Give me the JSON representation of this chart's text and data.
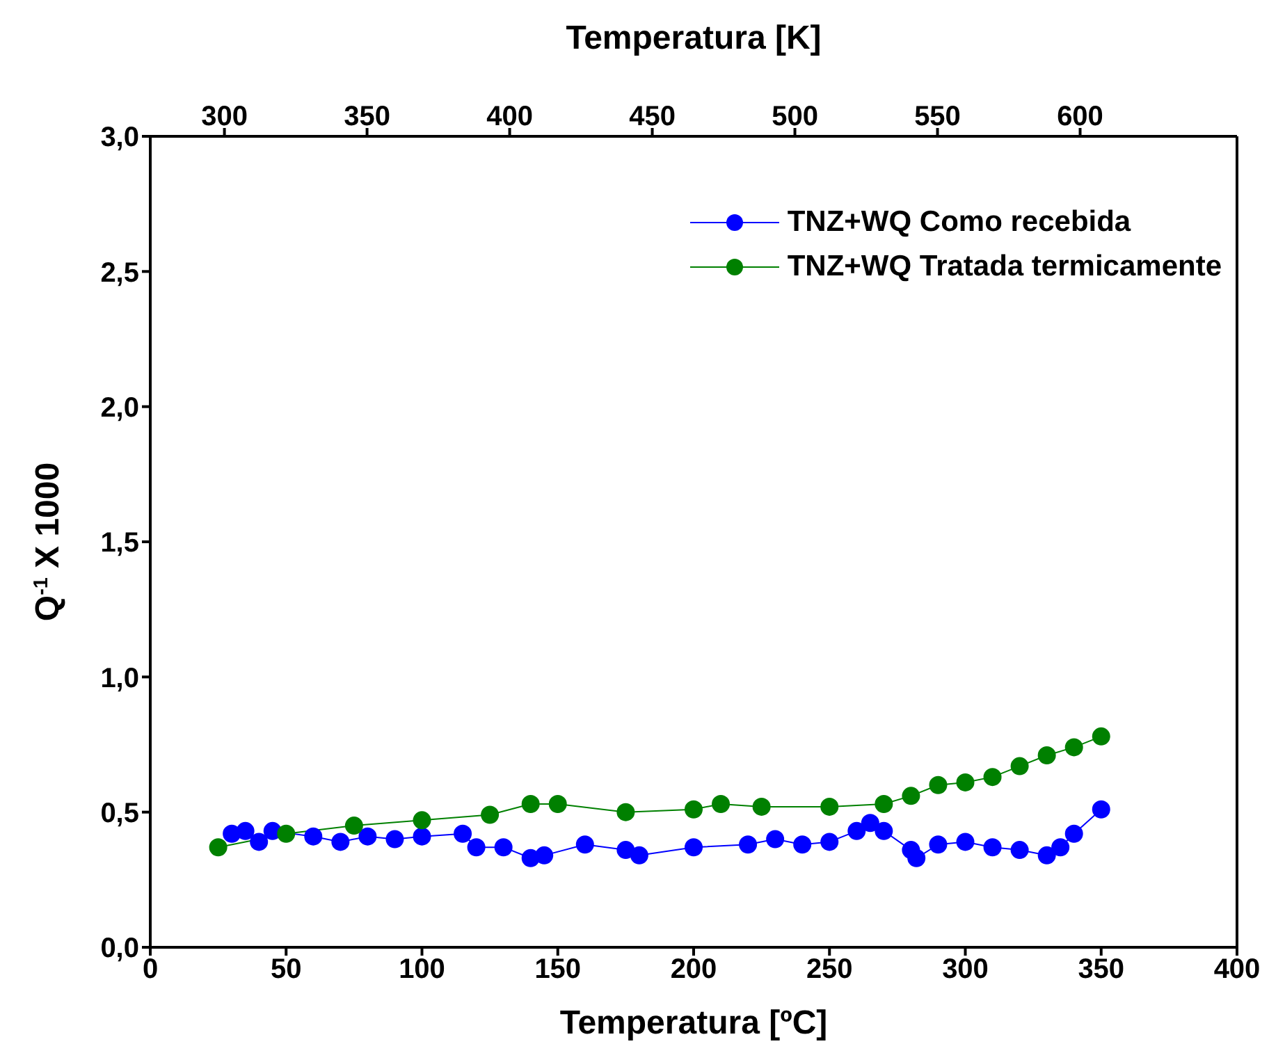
{
  "chart_data": {
    "type": "line",
    "xlabel": "Temperatura [ºC]",
    "x2label": "Temperatura [K]",
    "ylabel": "Q$^{-1}$ X 1000",
    "xlim": [
      0,
      400
    ],
    "xticks": [
      0,
      50,
      100,
      150,
      200,
      250,
      300,
      350,
      400
    ],
    "x2lim": [
      274,
      655
    ],
    "x2ticks": [
      300,
      350,
      400,
      450,
      500,
      550,
      600
    ],
    "ylim": [
      0,
      3
    ],
    "yticks": [
      {
        "value": 0,
        "label": "0,0"
      },
      {
        "value": 0.5,
        "label": "0,5"
      },
      {
        "value": 1,
        "label": "1,0"
      },
      {
        "value": 1.5,
        "label": "1,5"
      },
      {
        "value": 2,
        "label": "2,0"
      },
      {
        "value": 2.5,
        "label": "2,5"
      },
      {
        "value": 3,
        "label": "3,0"
      }
    ],
    "marker": "circle",
    "legend": "top right",
    "grid": false,
    "series": [
      {
        "name": "TNZ+WQ Como recebida",
        "color": "#0000ff",
        "x": [
          30,
          35,
          40,
          45,
          60,
          70,
          80,
          90,
          100,
          115,
          120,
          130,
          140,
          145,
          160,
          175,
          180,
          200,
          220,
          230,
          240,
          250,
          260,
          265,
          270,
          280,
          282,
          290,
          300,
          310,
          320,
          330,
          335,
          340,
          350
        ],
        "values": [
          0.42,
          0.43,
          0.39,
          0.43,
          0.41,
          0.39,
          0.41,
          0.4,
          0.41,
          0.42,
          0.37,
          0.37,
          0.33,
          0.34,
          0.38,
          0.36,
          0.34,
          0.37,
          0.38,
          0.4,
          0.38,
          0.39,
          0.43,
          0.46,
          0.43,
          0.36,
          0.33,
          0.38,
          0.39,
          0.37,
          0.36,
          0.34,
          0.37,
          0.42,
          0.51
        ]
      },
      {
        "name": "TNZ+WQ Tratada termicamente",
        "color": "#008000",
        "x": [
          25,
          50,
          75,
          100,
          125,
          140,
          150,
          175,
          200,
          210,
          225,
          250,
          270,
          280,
          290,
          300,
          310,
          320,
          330,
          340,
          350
        ],
        "values": [
          0.37,
          0.42,
          0.45,
          0.47,
          0.49,
          0.53,
          0.53,
          0.5,
          0.51,
          0.53,
          0.52,
          0.52,
          0.53,
          0.56,
          0.6,
          0.61,
          0.63,
          0.67,
          0.71,
          0.74,
          0.78
        ]
      }
    ]
  }
}
